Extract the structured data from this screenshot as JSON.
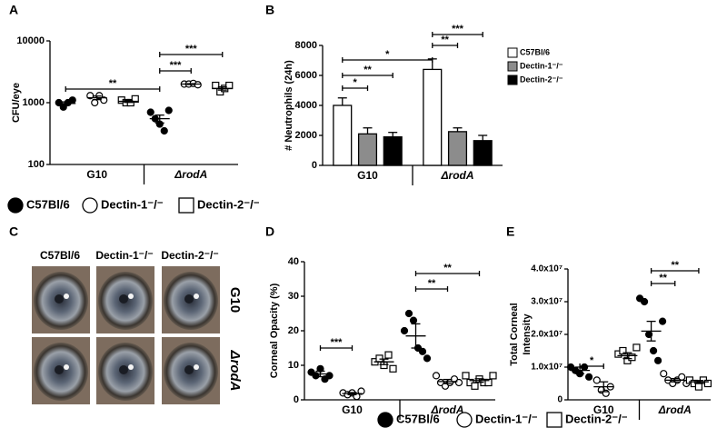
{
  "chart_data": [
    {
      "type": "dot",
      "panel": "A",
      "ylabel": "CFU/eye",
      "log_y": true,
      "ylim": [
        100,
        10000
      ],
      "yticks": [
        100,
        1000,
        10000
      ],
      "groups": [
        "G10",
        "ΔrodA"
      ],
      "series": [
        {
          "name": "C57Bl/6",
          "color": "#000000",
          "marker": "filled-circle",
          "values": [
            [
              1000,
              850,
              1000,
              1100
            ],
            [
              700,
              550,
              450,
              350,
              750
            ]
          ],
          "means": [
            970,
            550
          ],
          "errors": [
            60,
            80
          ]
        },
        {
          "name": "Dectin-1⁻/⁻",
          "color": "#000000",
          "marker": "circle",
          "values": [
            [
              1300,
              1000,
              1300,
              1100
            ],
            [
              2000,
              2000,
              2050,
              1950
            ]
          ],
          "means": [
            1200,
            2000
          ],
          "errors": [
            80,
            30
          ]
        },
        {
          "name": "Dectin-2⁻/⁻",
          "color": "#000000",
          "marker": "square",
          "values": [
            [
              1100,
              1000,
              1000,
              1150
            ],
            [
              1900,
              1500,
              1700,
              1900
            ]
          ],
          "means": [
            1050,
            1700
          ],
          "errors": [
            40,
            100
          ]
        }
      ],
      "annotations": [
        "**",
        "***",
        "***"
      ]
    },
    {
      "type": "bar",
      "panel": "B",
      "ylabel": "# Neutrophils (24h)",
      "ylim": [
        0,
        8000
      ],
      "yticks": [
        0,
        2000,
        4000,
        6000,
        8000
      ],
      "groups": [
        "G10",
        "ΔrodA"
      ],
      "series": [
        {
          "name": "C57Bl/6",
          "color": "#ffffff",
          "values": [
            4000,
            6400
          ],
          "errors": [
            500,
            700
          ]
        },
        {
          "name": "Dectin-1⁻/⁻",
          "color": "#8c8c8c",
          "values": [
            2100,
            2250
          ],
          "errors": [
            400,
            250
          ]
        },
        {
          "name": "Dectin-2⁻/⁻",
          "color": "#000000",
          "values": [
            1900,
            1650
          ],
          "errors": [
            300,
            350
          ]
        }
      ],
      "annotations": [
        "*",
        "**",
        "*",
        "**",
        "***"
      ]
    },
    {
      "type": "dot",
      "panel": "D",
      "ylabel": "Corneal Opacity (%)",
      "ylim": [
        0,
        40
      ],
      "yticks": [
        0,
        10,
        20,
        30,
        40
      ],
      "groups": [
        "G10",
        "ΔrodA"
      ],
      "series": [
        {
          "name": "C57Bl/6",
          "color": "#000000",
          "marker": "filled-circle",
          "values": [
            [
              8,
              7,
              9,
              6,
              7
            ],
            [
              20,
              25,
              23,
              15,
              14,
              12
            ]
          ],
          "means": [
            7.5,
            18.5
          ],
          "errors": [
            0.8,
            3.5
          ]
        },
        {
          "name": "Dectin-1⁻/⁻",
          "color": "#000000",
          "marker": "circle",
          "values": [
            [
              2,
              1.5,
              2,
              1,
              2.5
            ],
            [
              7,
              5,
              4,
              5,
              6,
              5
            ]
          ],
          "means": [
            1.8,
            5.3
          ],
          "errors": [
            0.3,
            0.6
          ]
        },
        {
          "name": "Dectin-2⁻/⁻",
          "color": "#000000",
          "marker": "square",
          "values": [
            [
              11,
              12,
              10,
              13,
              9
            ],
            [
              7,
              5,
              4,
              6,
              5,
              5,
              7
            ]
          ],
          "means": [
            11,
            5.6
          ],
          "errors": [
            0.8,
            0.5
          ]
        }
      ],
      "annotations": [
        "***",
        "**",
        "**"
      ]
    },
    {
      "type": "dot",
      "panel": "E",
      "ylabel": [
        "Total Corneal",
        "Intensity"
      ],
      "ylim": [
        0,
        40000000
      ],
      "yticks": [
        0,
        {
          "value": 10000000,
          "label": "1.0x10⁷"
        },
        {
          "value": 20000000,
          "label": "2.0x10⁷"
        },
        {
          "value": 30000000,
          "label": "3.0x10⁷"
        },
        {
          "value": 40000000,
          "label": "4.0x10⁷"
        }
      ],
      "groups": [
        "G10",
        "ΔrodA"
      ],
      "series": [
        {
          "color": "#000000",
          "marker": "filled-circle",
          "values": [
            [
              10000000,
              9000000,
              8000000,
              10000000,
              7000000
            ],
            [
              31000000,
              30000000,
              20000000,
              15000000,
              12000000,
              24000000
            ]
          ],
          "means": [
            9000000,
            21000000
          ],
          "errors": [
            1000000,
            3000000
          ]
        },
        {
          "color": "#000000",
          "marker": "circle",
          "values": [
            [
              6000000,
              3000000,
              2000000,
              4000000
            ],
            [
              8000000,
              6000000,
              5000000,
              6000000,
              7000000,
              5000000
            ]
          ],
          "means": [
            4000000,
            6000000
          ],
          "errors": [
            1500000,
            500000
          ]
        },
        {
          "color": "#000000",
          "marker": "square",
          "values": [
            [
              14000000,
              15000000,
              12000000,
              13000000,
              16000000
            ],
            [
              6000000,
              5000000,
              4000000,
              6000000,
              5000000
            ]
          ],
          "means": [
            13500000,
            5500000
          ],
          "errors": [
            900000,
            400000
          ]
        }
      ],
      "annotations": [
        "*",
        "**",
        "**"
      ]
    }
  ],
  "image_panel": {
    "panel": "C",
    "columns": [
      "C57Bl/6",
      "Dectin-1⁻/⁻",
      "Dectin-2⁻/⁻"
    ],
    "rows": [
      "G10",
      "ΔrodA"
    ]
  }
}
